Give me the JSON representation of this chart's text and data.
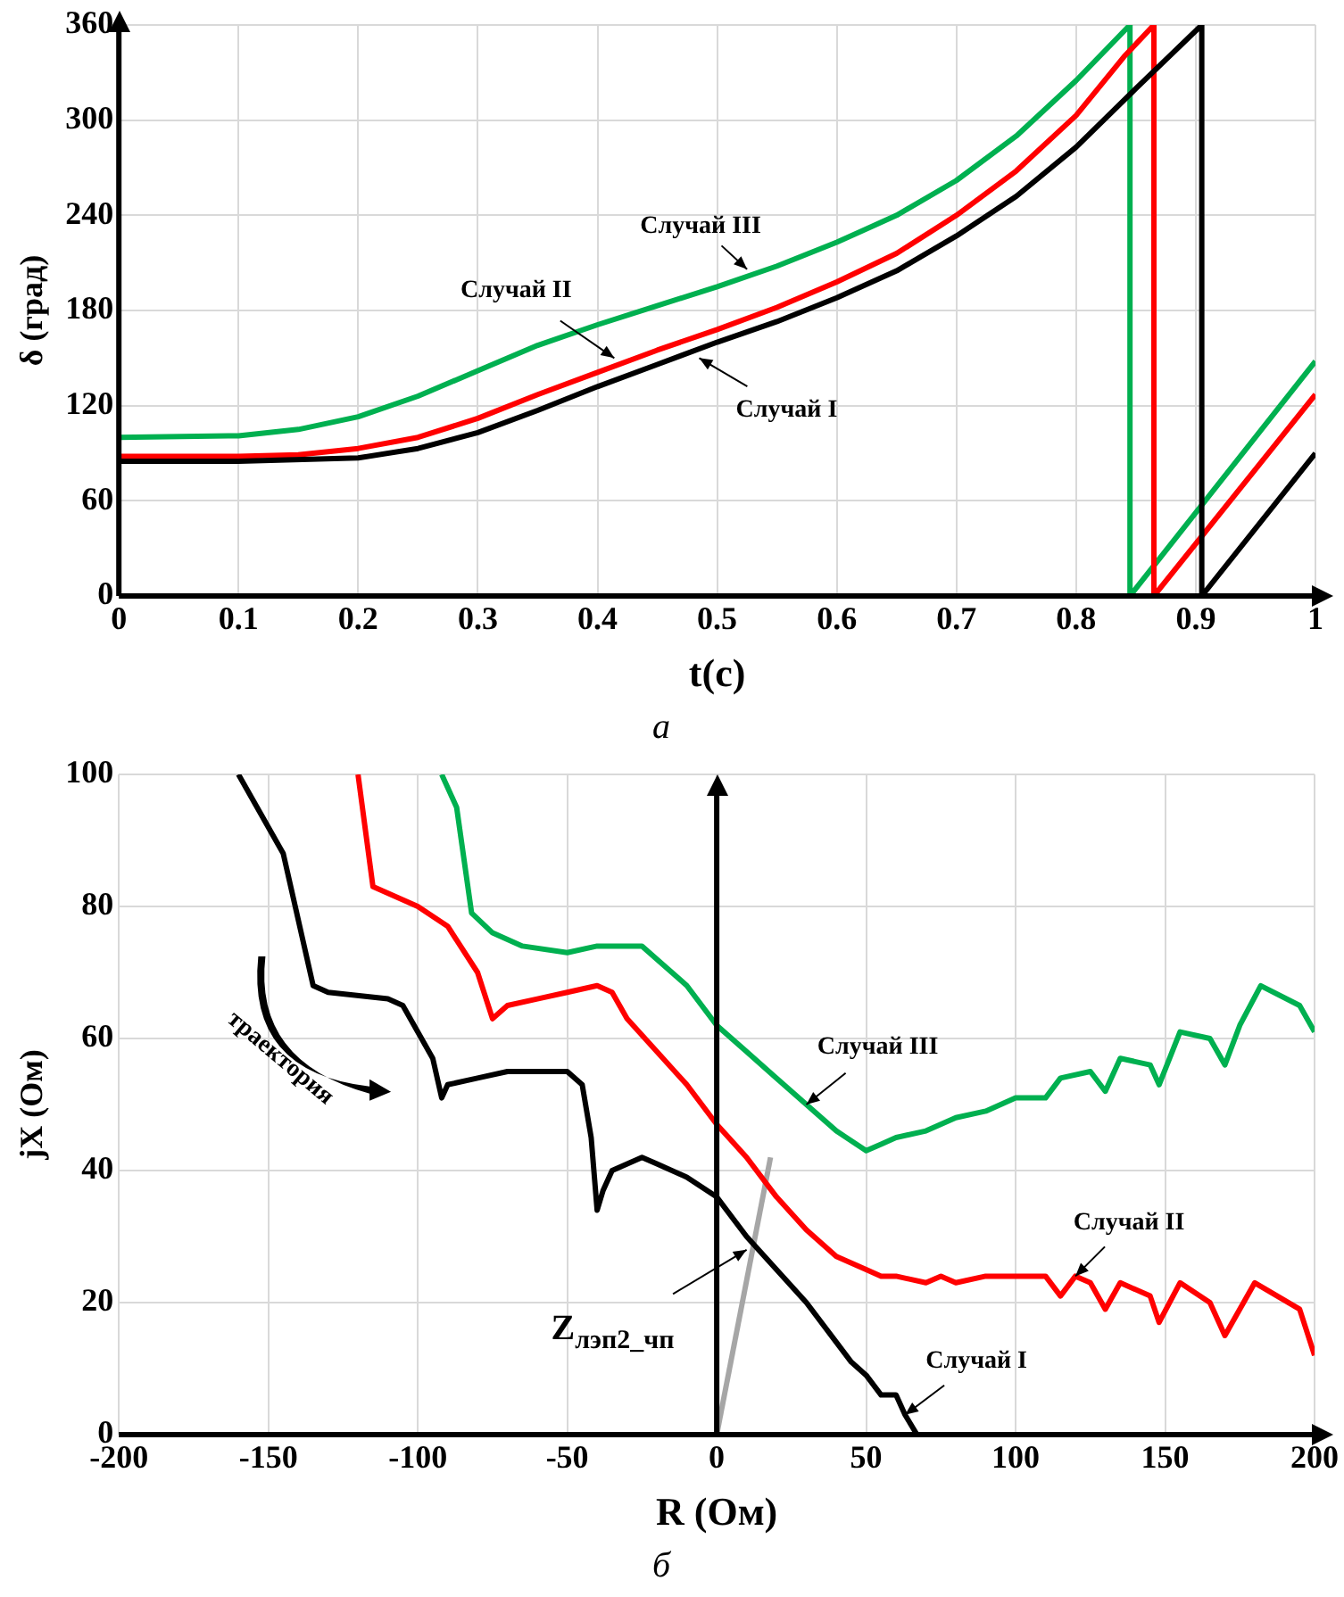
{
  "chart_data": [
    {
      "type": "line",
      "xlabel": "t(c)",
      "ylabel": "δ (град)",
      "subtitle": "а",
      "xlim": [
        0,
        1
      ],
      "xticks": [
        0,
        0.1,
        0.2,
        0.3,
        0.4,
        0.5,
        0.6,
        0.7,
        0.8,
        0.9,
        1
      ],
      "ylim": [
        0,
        360
      ],
      "yticks": [
        0,
        60,
        120,
        180,
        240,
        300,
        360
      ],
      "grid": true,
      "legend": false,
      "marker": "none",
      "line_style": "solid",
      "series": [
        {
          "color": "#000000",
          "x": [
            0,
            0.1,
            0.2,
            0.25,
            0.3,
            0.35,
            0.4,
            0.45,
            0.5,
            0.55,
            0.6,
            0.65,
            0.7,
            0.75,
            0.8,
            0.85,
            0.905,
            0.905,
            1
          ],
          "values": [
            85,
            85,
            87,
            93,
            103,
            117,
            132,
            146,
            160,
            173,
            188,
            205,
            227,
            252,
            283,
            320,
            360,
            0,
            90
          ]
        },
        {
          "color": "#ff0000",
          "x": [
            0,
            0.1,
            0.15,
            0.2,
            0.25,
            0.3,
            0.35,
            0.4,
            0.45,
            0.5,
            0.55,
            0.6,
            0.65,
            0.7,
            0.75,
            0.8,
            0.84,
            0.865,
            0.865,
            1
          ],
          "values": [
            88,
            88,
            89,
            93,
            100,
            112,
            127,
            141,
            155,
            168,
            182,
            198,
            216,
            240,
            268,
            303,
            340,
            360,
            0,
            127
          ]
        },
        {
          "color": "#00b050",
          "x": [
            0,
            0.1,
            0.15,
            0.2,
            0.25,
            0.3,
            0.35,
            0.4,
            0.45,
            0.5,
            0.55,
            0.6,
            0.65,
            0.7,
            0.75,
            0.8,
            0.845,
            0.845,
            1
          ],
          "values": [
            100,
            101,
            105,
            113,
            126,
            142,
            158,
            171,
            183,
            195,
            208,
            223,
            240,
            262,
            290,
            325,
            360,
            0,
            148
          ]
        }
      ],
      "annotations": [
        {
          "text": "Случай III",
          "x": 0.525,
          "y": 206
        },
        {
          "text": "Случай II",
          "x": 0.414,
          "y": 150
        },
        {
          "text": "Случай I",
          "x": 0.485,
          "y": 150
        }
      ]
    },
    {
      "type": "line",
      "xlabel": "R (Ом)",
      "ylabel": "jX (Ом)",
      "subtitle": "б",
      "xlim": [
        -200,
        200
      ],
      "xticks": [
        -200,
        -150,
        -100,
        -50,
        0,
        50,
        100,
        150,
        200
      ],
      "ylim": [
        0,
        100
      ],
      "yticks": [
        0,
        20,
        40,
        60,
        80,
        100
      ],
      "grid": true,
      "legend": false,
      "marker": "none",
      "line_style": "solid",
      "ref_lines": [
        {
          "axis": "x",
          "value": 0,
          "color": "#000000"
        }
      ],
      "series": [
        {
          "color": "#000000",
          "x": [
            -160,
            -145,
            -135,
            -130,
            -110,
            -105,
            -95,
            -92,
            -90,
            -80,
            -70,
            -60,
            -50,
            -45,
            -42,
            -40,
            -38,
            -35,
            -25,
            -20,
            -10,
            0,
            10,
            20,
            30,
            40,
            45,
            50,
            55,
            60,
            63,
            67
          ],
          "values": [
            100,
            88,
            68,
            67,
            66,
            65,
            57,
            51,
            53,
            54,
            55,
            55,
            55,
            53,
            45,
            34,
            37,
            40,
            42,
            41,
            39,
            36,
            30,
            25,
            20,
            14,
            11,
            9,
            6,
            6,
            3,
            0
          ]
        },
        {
          "color": "#ff0000",
          "x": [
            -120,
            -115,
            -100,
            -90,
            -80,
            -75,
            -70,
            -60,
            -50,
            -40,
            -35,
            -30,
            -20,
            -10,
            0,
            10,
            20,
            30,
            40,
            50,
            55,
            60,
            70,
            75,
            80,
            90,
            100,
            110,
            115,
            120,
            125,
            130,
            135,
            145,
            148,
            155,
            165,
            170,
            180,
            195,
            200
          ],
          "values": [
            100,
            83,
            80,
            77,
            70,
            63,
            65,
            66,
            67,
            68,
            67,
            63,
            58,
            53,
            47,
            42,
            36,
            31,
            27,
            25,
            24,
            24,
            23,
            24,
            23,
            24,
            24,
            24,
            21,
            24,
            23,
            19,
            23,
            21,
            17,
            23,
            20,
            15,
            23,
            19,
            12
          ]
        },
        {
          "color": "#00b050",
          "x": [
            -92,
            -87,
            -82,
            -75,
            -65,
            -50,
            -40,
            -30,
            -25,
            -20,
            -10,
            0,
            10,
            20,
            30,
            40,
            50,
            55,
            60,
            70,
            80,
            90,
            100,
            110,
            115,
            125,
            130,
            135,
            145,
            148,
            155,
            165,
            170,
            175,
            182,
            195,
            200
          ],
          "values": [
            100,
            95,
            79,
            76,
            74,
            73,
            74,
            74,
            74,
            72,
            68,
            62,
            58,
            54,
            50,
            46,
            43,
            44,
            45,
            46,
            48,
            49,
            51,
            51,
            54,
            55,
            52,
            57,
            56,
            53,
            61,
            60,
            56,
            62,
            68,
            65,
            61
          ]
        },
        {
          "color": "#a6a6a6",
          "x": [
            0,
            18
          ],
          "values": [
            0,
            42
          ]
        }
      ],
      "annotations": [
        {
          "text": "Случай III",
          "x": 30,
          "y": 50
        },
        {
          "text": "Случай II",
          "x": 120,
          "y": 24
        },
        {
          "text": "Случай I",
          "x": 63,
          "y": 3
        },
        {
          "text": "Z$_{лэп2_чп}$",
          "x": 10,
          "y": 28
        },
        "траектория"
      ]
    }
  ]
}
